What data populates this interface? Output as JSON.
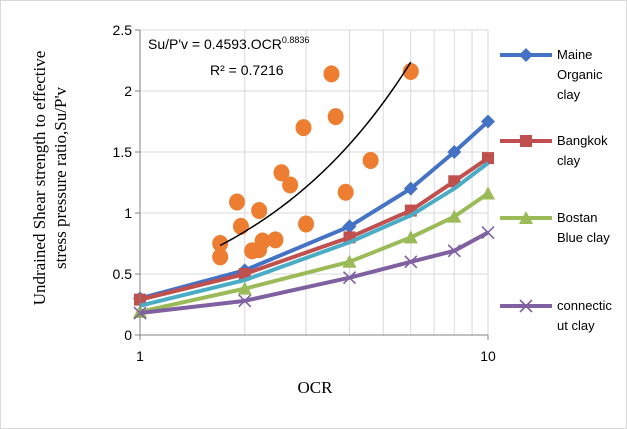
{
  "chart_data": {
    "type": "line",
    "xscale": "log",
    "xlim": [
      1,
      10
    ],
    "ylim": [
      0,
      2.5
    ],
    "xlabel": "OCR",
    "ylabel_line1": "Undrained Shear strength to effective",
    "ylabel_line2": "stress pressure ratio,Su/P'v",
    "x_ticks": [
      "1",
      "10"
    ],
    "y_ticks": [
      "0",
      "0.5",
      "1",
      "1.5",
      "2",
      "2.5"
    ],
    "grid": true,
    "legend_position": "right",
    "equation": {
      "prefix": "Su/P'v = 0.4593.OCR",
      "exponent": "0.8836",
      "r2": "R² = 0.7216"
    },
    "scatter": {
      "color": "#ED7D31",
      "points": [
        [
          1.7,
          0.75
        ],
        [
          1.7,
          0.64
        ],
        [
          1.9,
          1.09
        ],
        [
          1.95,
          0.89
        ],
        [
          2.1,
          0.69
        ],
        [
          2.2,
          0.7
        ],
        [
          2.2,
          1.02
        ],
        [
          2.25,
          0.77
        ],
        [
          2.45,
          0.78
        ],
        [
          2.55,
          1.33
        ],
        [
          2.7,
          1.23
        ],
        [
          2.95,
          1.7
        ],
        [
          3.0,
          0.91
        ],
        [
          3.55,
          2.14
        ],
        [
          3.65,
          1.79
        ],
        [
          3.9,
          1.17
        ],
        [
          4.6,
          1.43
        ],
        [
          6.0,
          2.16
        ]
      ]
    },
    "trendline": {
      "x": [
        1.7,
        6.0
      ],
      "color": "#000000"
    },
    "series": [
      {
        "name": "Maine Organic clay",
        "legend_lines": [
          "Maine",
          "Organic",
          "clay"
        ],
        "color": "#4472C4",
        "marker": "diamond",
        "x": [
          1,
          2,
          4,
          6,
          8,
          10
        ],
        "values": [
          0.3,
          0.53,
          0.89,
          1.2,
          1.5,
          1.75
        ]
      },
      {
        "name": "Bangkok clay",
        "legend_lines": [
          "Bangkok",
          "clay"
        ],
        "color": "#C0504D",
        "marker": "square",
        "x": [
          1,
          2,
          4,
          6,
          8,
          10
        ],
        "values": [
          0.29,
          0.5,
          0.8,
          1.02,
          1.26,
          1.45
        ]
      },
      {
        "name": "Bostan Blue clay",
        "legend_lines": [
          "Bostan",
          "Blue clay"
        ],
        "color": "#9BBB59",
        "marker": "triangle",
        "x": [
          1,
          2,
          4,
          6,
          8,
          10
        ],
        "values": [
          0.19,
          0.38,
          0.6,
          0.8,
          0.97,
          1.16
        ]
      },
      {
        "name": "connecticut clay",
        "legend_lines": [
          "connectic",
          "ut clay"
        ],
        "color": "#7F60A0",
        "marker": "x",
        "x": [
          1,
          2,
          4,
          6,
          8,
          10
        ],
        "values": [
          0.18,
          0.28,
          0.47,
          0.6,
          0.69,
          0.84
        ]
      },
      {
        "name": "",
        "legend_lines": [],
        "color": "#4BACC6",
        "marker": "none",
        "x": [
          1,
          2,
          4,
          6,
          8,
          10
        ],
        "values": [
          0.24,
          0.45,
          0.76,
          0.98,
          1.2,
          1.41
        ]
      }
    ]
  }
}
